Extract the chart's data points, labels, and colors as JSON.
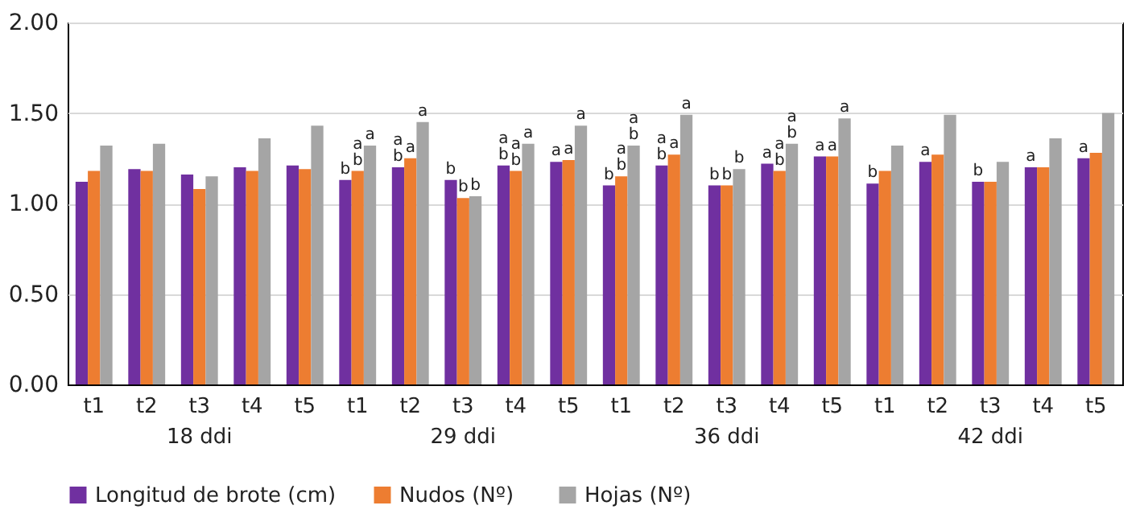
{
  "chart_data": {
    "type": "bar",
    "categories": [
      "t1",
      "t2",
      "t3",
      "t4",
      "t5",
      "t1",
      "t2",
      "t3",
      "t4",
      "t5",
      "t1",
      "t2",
      "t3",
      "t4",
      "t5",
      "t1",
      "t2",
      "t3",
      "t4",
      "t5"
    ],
    "annotations": [
      "18 ddi",
      "29 ddi",
      "36 ddi",
      "42 ddi"
    ],
    "series": [
      {
        "name": "Longitud de brote (cm)",
        "color": "#7030a0",
        "values": [
          1.12,
          1.19,
          1.16,
          1.2,
          1.21,
          1.13,
          1.2,
          1.13,
          1.21,
          1.23,
          1.1,
          1.21,
          1.1,
          1.22,
          1.26,
          1.11,
          1.23,
          1.12,
          1.2,
          1.25
        ],
        "value_labels": [
          null,
          null,
          null,
          null,
          null,
          "b",
          "ab",
          "b",
          "ab",
          "a",
          "b",
          "ab",
          "b",
          "a",
          "a",
          "b",
          "a",
          "b",
          "a",
          "a"
        ]
      },
      {
        "name": "Nudos  (Nº)",
        "color": "#ed7d31",
        "values": [
          1.18,
          1.18,
          1.08,
          1.18,
          1.19,
          1.18,
          1.25,
          1.03,
          1.18,
          1.24,
          1.15,
          1.27,
          1.1,
          1.18,
          1.26,
          1.18,
          1.27,
          1.12,
          1.2,
          1.28
        ],
        "value_labels": [
          null,
          null,
          null,
          null,
          null,
          "ab",
          "a",
          "b",
          "ab",
          "a",
          "ab",
          "a",
          "b",
          "ab",
          "a",
          null,
          null,
          null,
          null,
          null
        ]
      },
      {
        "name": "Hojas (Nº)",
        "color": "#a5a5a5",
        "values": [
          1.32,
          1.33,
          1.15,
          1.36,
          1.43,
          1.32,
          1.45,
          1.04,
          1.33,
          1.43,
          1.32,
          1.49,
          1.19,
          1.33,
          1.47,
          1.32,
          1.49,
          1.23,
          1.36,
          1.5
        ],
        "value_labels": [
          null,
          null,
          null,
          null,
          null,
          "a",
          "a",
          "b",
          "a",
          "a",
          "ab",
          "a",
          "b",
          "ab",
          "a",
          null,
          null,
          null,
          null,
          null
        ]
      }
    ],
    "ylim": [
      0,
      2
    ],
    "yticks": [
      {
        "value": 0,
        "label": "0.00"
      },
      {
        "value": 0.5,
        "label": "0.50"
      },
      {
        "value": 1,
        "label": "1.00"
      },
      {
        "value": 1.5,
        "label": "1.50"
      },
      {
        "value": 2,
        "label": "2.00"
      }
    ],
    "grid": "y",
    "legend": "bottom"
  }
}
